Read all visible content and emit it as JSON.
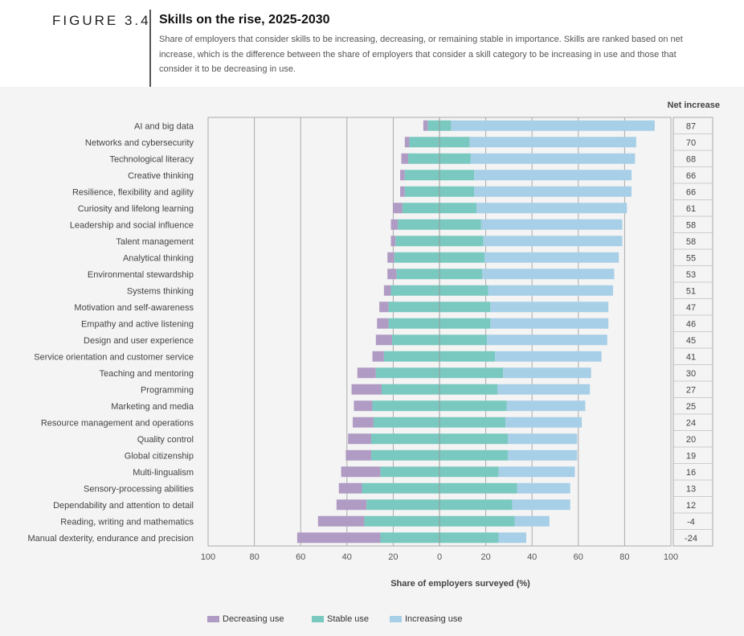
{
  "figure": {
    "label": "FIGURE 3.4",
    "title": "Skills on the rise, 2025-2030",
    "subtitle": "Share of employers that consider skills to be increasing, decreasing, or remaining stable in importance. Skills are ranked based on net increase, which is the difference between the share of employers that consider a skill category to be increasing in use and those that consider it to be decreasing in use."
  },
  "colors": {
    "decreasing": "#b09bc4",
    "stable": "#79c9c0",
    "increasing": "#a7cfe7"
  },
  "chart_data": {
    "type": "bar",
    "orientation": "horizontal-diverging-stacked",
    "xlabel": "Share of employers surveyed (%)",
    "xlim": [
      -100,
      100
    ],
    "xticks": [
      "100",
      "80",
      "60",
      "40",
      "20",
      "0",
      "20",
      "40",
      "60",
      "80",
      "100"
    ],
    "net_header": "Net increase",
    "legend_position": "bottom",
    "grid": true,
    "categories": [
      "AI and big data",
      "Networks and cybersecurity",
      "Technological literacy",
      "Creative thinking",
      "Resilience, flexibility and agility",
      "Curiosity and lifelong learning",
      "Leadership and social influence",
      "Talent management",
      "Analytical thinking",
      "Environmental stewardship",
      "Systems thinking",
      "Motivation and self-awareness",
      "Empathy and active listening",
      "Design and user experience",
      "Service orientation and customer service",
      "Teaching and mentoring",
      "Programming",
      "Marketing and media",
      "Resource management and operations",
      "Quality control",
      "Global citizenship",
      "Multi-lingualism",
      "Sensory-processing abilities",
      "Dependability and attention to detail",
      "Reading, writing and mathematics",
      "Manual dexterity, endurance and precision"
    ],
    "series": [
      {
        "name": "Decreasing use",
        "values": [
          2,
          2,
          3,
          2,
          2,
          4,
          3,
          2,
          3,
          4,
          3,
          4,
          5,
          7,
          5,
          8,
          13,
          8,
          9,
          10,
          11,
          17,
          10,
          13,
          20,
          36
        ]
      },
      {
        "name": "Stable use",
        "values": [
          10,
          26,
          27,
          30,
          30,
          32,
          36,
          38,
          39,
          37,
          42,
          44,
          44,
          41,
          48,
          55,
          50,
          58,
          57,
          59,
          59,
          51,
          67,
          63,
          65,
          51
        ]
      },
      {
        "name": "Increasing use",
        "values": [
          88,
          72,
          71,
          68,
          68,
          65,
          61,
          60,
          58,
          57,
          54,
          51,
          51,
          52,
          46,
          38,
          40,
          34,
          33,
          30,
          30,
          33,
          23,
          25,
          15,
          12
        ]
      }
    ],
    "net_increase": [
      "87",
      "70",
      "68",
      "66",
      "66",
      "61",
      "58",
      "58",
      "55",
      "53",
      "51",
      "47",
      "46",
      "45",
      "41",
      "30",
      "27",
      "25",
      "24",
      "20",
      "19",
      "16",
      "13",
      "12",
      "-4",
      "-24"
    ]
  }
}
